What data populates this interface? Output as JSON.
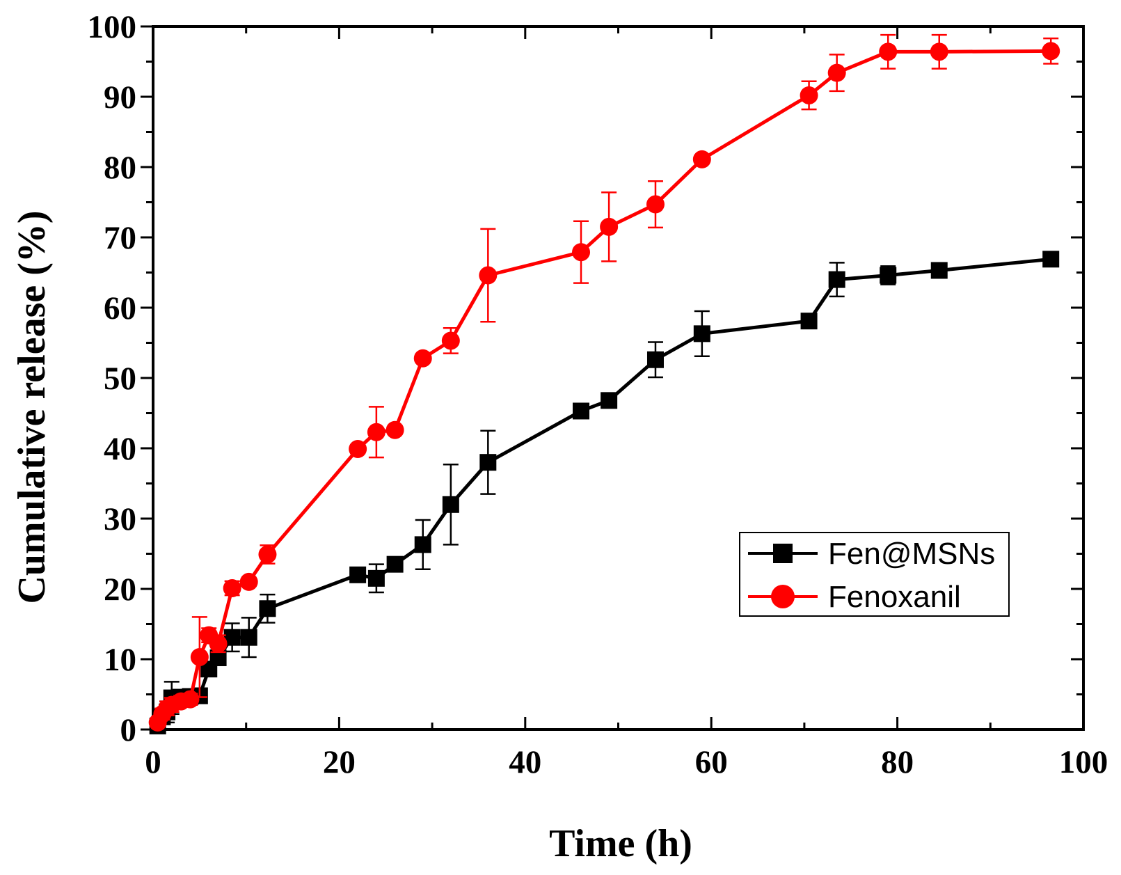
{
  "chart_data": {
    "type": "line",
    "title": "",
    "xlabel": "Time (h)",
    "ylabel": "Cumulative release (%)",
    "xlim": [
      0,
      100
    ],
    "ylim": [
      0,
      100
    ],
    "xticks": [
      0,
      20,
      40,
      60,
      80,
      100
    ],
    "yticks": [
      0,
      10,
      20,
      30,
      40,
      50,
      60,
      70,
      80,
      90,
      100
    ],
    "legend_position": "lower-right",
    "series": [
      {
        "name": "Fen@MSNs",
        "color": "#000000",
        "marker": "square",
        "x": [
          0.5,
          1,
          1.5,
          2,
          3,
          4,
          5,
          6,
          7,
          8.5,
          10.3,
          12.3,
          22,
          24,
          26,
          29,
          32,
          36,
          46,
          49,
          54,
          59,
          70.5,
          73.5,
          79,
          84.5,
          96.5
        ],
        "y": [
          0.5,
          1.8,
          2.5,
          4.5,
          4.6,
          4.7,
          4.8,
          8.6,
          10.2,
          13.1,
          13.1,
          17.2,
          22.0,
          21.5,
          23.5,
          26.3,
          32.0,
          38.0,
          45.3,
          46.8,
          52.6,
          56.3,
          58.1,
          64.0,
          64.6,
          65.3,
          66.9
        ],
        "err": [
          0.5,
          1.0,
          1.5,
          2.3,
          1.0,
          1.0,
          1.0,
          1.0,
          1.0,
          2.0,
          2.8,
          2.0,
          0.8,
          2.0,
          0.8,
          3.5,
          5.7,
          4.5,
          0.6,
          0.6,
          2.5,
          3.2,
          0.6,
          2.4,
          1.3,
          0.6,
          0.6
        ]
      },
      {
        "name": "Fenoxanil",
        "color": "#ff0000",
        "marker": "circle",
        "x": [
          0.5,
          1,
          1.5,
          2,
          3,
          4,
          5,
          6,
          7,
          8.5,
          10.3,
          12.3,
          22,
          24,
          26,
          29,
          32,
          36,
          46,
          49,
          54,
          59,
          70.5,
          73.5,
          79,
          84.5,
          96.5
        ],
        "y": [
          1.0,
          2.2,
          3.0,
          3.5,
          4.0,
          4.3,
          10.3,
          13.4,
          12.2,
          20.1,
          21.0,
          24.9,
          39.9,
          42.3,
          42.6,
          52.8,
          55.3,
          64.6,
          67.9,
          71.5,
          74.7,
          81.1,
          90.2,
          93.4,
          96.4,
          96.4,
          96.5
        ],
        "err": [
          0.5,
          0.8,
          1.0,
          1.0,
          0.8,
          0.8,
          5.7,
          1.0,
          1.2,
          1.0,
          0.6,
          1.3,
          0.6,
          3.6,
          0.6,
          0.6,
          1.8,
          6.6,
          4.4,
          4.9,
          3.3,
          0.6,
          2.0,
          2.6,
          2.4,
          2.4,
          1.8
        ]
      }
    ]
  }
}
